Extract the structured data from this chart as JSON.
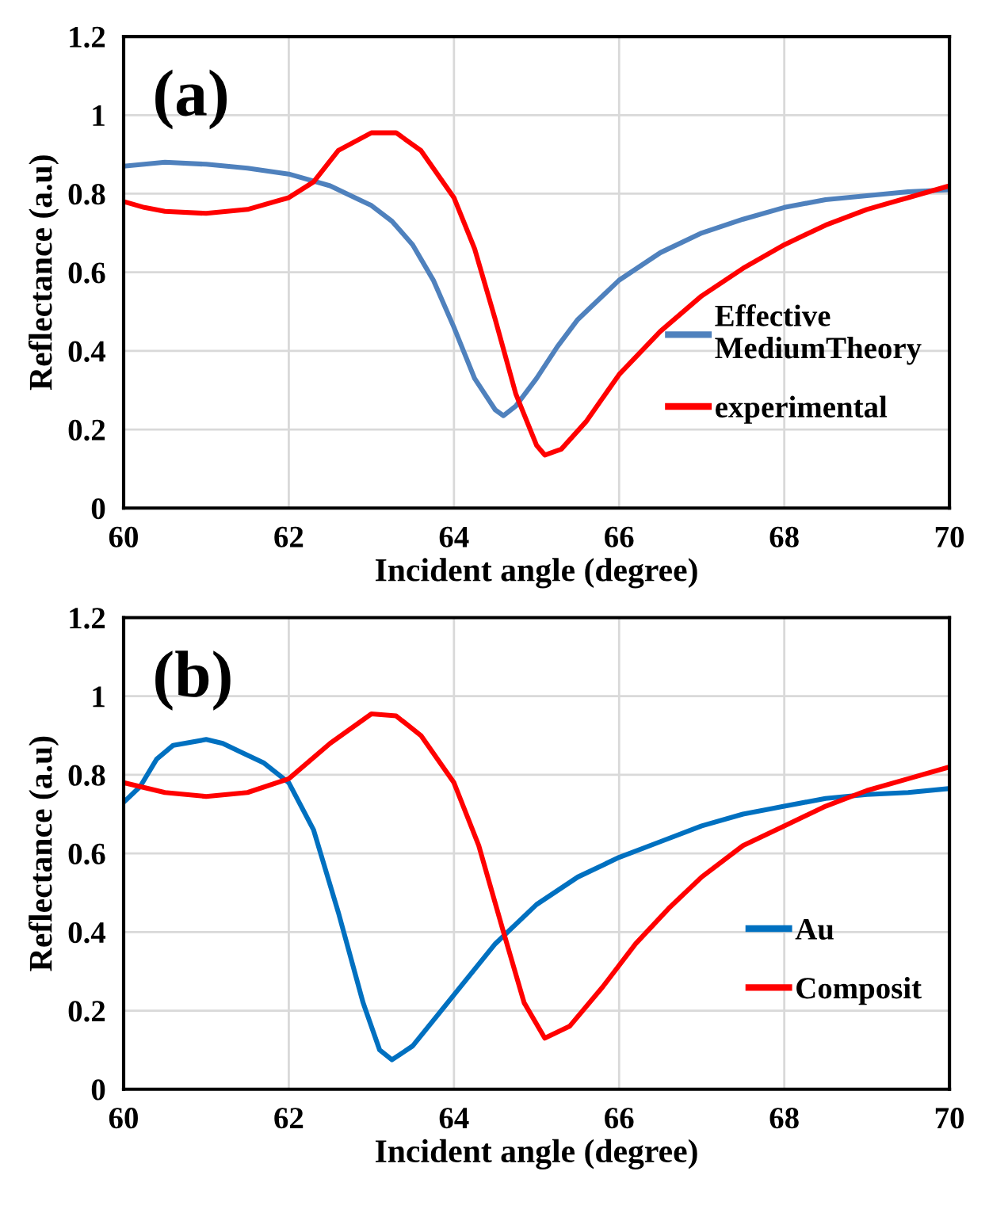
{
  "chart_data": [
    {
      "type": "line",
      "xlabel": "Incident angle (degree)",
      "ylabel": "Reflectance (a.u)",
      "annotations": [
        "(a)"
      ],
      "xlim": [
        60,
        70
      ],
      "xticks": [
        60,
        62,
        64,
        66,
        68,
        70
      ],
      "ylim": [
        0,
        1.2
      ],
      "yticks": [
        0,
        0.2,
        0.4,
        0.6,
        0.8,
        1,
        1.2
      ],
      "grid": true,
      "legend": "lower right",
      "series": [
        {
          "name": "Effective\nMediumTheory",
          "color": "#4f81bd",
          "x": [
            60,
            60.5,
            61,
            61.5,
            62,
            62.5,
            63,
            63.25,
            63.5,
            63.75,
            64,
            64.25,
            64.5,
            64.6,
            64.75,
            65,
            65.25,
            65.5,
            66,
            66.5,
            67,
            67.5,
            68,
            68.5,
            69,
            69.5,
            70
          ],
          "values": [
            0.87,
            0.88,
            0.875,
            0.865,
            0.85,
            0.82,
            0.77,
            0.73,
            0.67,
            0.58,
            0.46,
            0.33,
            0.25,
            0.235,
            0.26,
            0.33,
            0.41,
            0.48,
            0.58,
            0.65,
            0.7,
            0.735,
            0.765,
            0.785,
            0.795,
            0.805,
            0.81
          ]
        },
        {
          "name": "experimental",
          "color": "#ff0000",
          "x": [
            60,
            60.25,
            60.5,
            61,
            61.5,
            62,
            62.3,
            62.6,
            63,
            63.3,
            63.6,
            64,
            64.25,
            64.5,
            64.75,
            65,
            65.1,
            65.3,
            65.6,
            66,
            66.5,
            67,
            67.5,
            68,
            68.5,
            69,
            69.5,
            70
          ],
          "values": [
            0.78,
            0.765,
            0.755,
            0.75,
            0.76,
            0.79,
            0.83,
            0.91,
            0.955,
            0.955,
            0.91,
            0.79,
            0.66,
            0.48,
            0.29,
            0.16,
            0.135,
            0.15,
            0.22,
            0.34,
            0.45,
            0.54,
            0.61,
            0.67,
            0.72,
            0.76,
            0.79,
            0.82
          ]
        }
      ]
    },
    {
      "type": "line",
      "xlabel": "Incident angle (degree)",
      "ylabel": "Reflectance (a.u)",
      "annotations": [
        "(b)"
      ],
      "xlim": [
        60,
        70
      ],
      "xticks": [
        60,
        62,
        64,
        66,
        68,
        70
      ],
      "ylim": [
        0,
        1.2
      ],
      "yticks": [
        0,
        0.2,
        0.4,
        0.6,
        0.8,
        1,
        1.2
      ],
      "grid": true,
      "legend": "lower right",
      "series": [
        {
          "name": "Au",
          "color": "#0070c0",
          "x": [
            60,
            60.2,
            60.4,
            60.6,
            61,
            61.2,
            61.4,
            61.7,
            62,
            62.3,
            62.6,
            62.9,
            63.1,
            63.25,
            63.5,
            64,
            64.5,
            65,
            65.5,
            66,
            66.5,
            67,
            67.5,
            68,
            68.5,
            69,
            69.5,
            70
          ],
          "values": [
            0.73,
            0.77,
            0.84,
            0.875,
            0.89,
            0.88,
            0.86,
            0.83,
            0.78,
            0.66,
            0.45,
            0.22,
            0.1,
            0.075,
            0.11,
            0.24,
            0.37,
            0.47,
            0.54,
            0.59,
            0.63,
            0.67,
            0.7,
            0.72,
            0.74,
            0.75,
            0.755,
            0.765
          ]
        },
        {
          "name": "Composit",
          "color": "#ff0000",
          "x": [
            60,
            60.5,
            61,
            61.5,
            62,
            62.5,
            63,
            63.3,
            63.6,
            64,
            64.3,
            64.6,
            64.85,
            65.1,
            65.4,
            65.8,
            66.2,
            66.6,
            67,
            67.5,
            68,
            68.5,
            69,
            69.5,
            70
          ],
          "values": [
            0.78,
            0.755,
            0.745,
            0.755,
            0.79,
            0.88,
            0.955,
            0.95,
            0.9,
            0.78,
            0.62,
            0.4,
            0.22,
            0.13,
            0.16,
            0.26,
            0.37,
            0.46,
            0.54,
            0.62,
            0.67,
            0.72,
            0.76,
            0.79,
            0.82
          ]
        }
      ]
    }
  ]
}
